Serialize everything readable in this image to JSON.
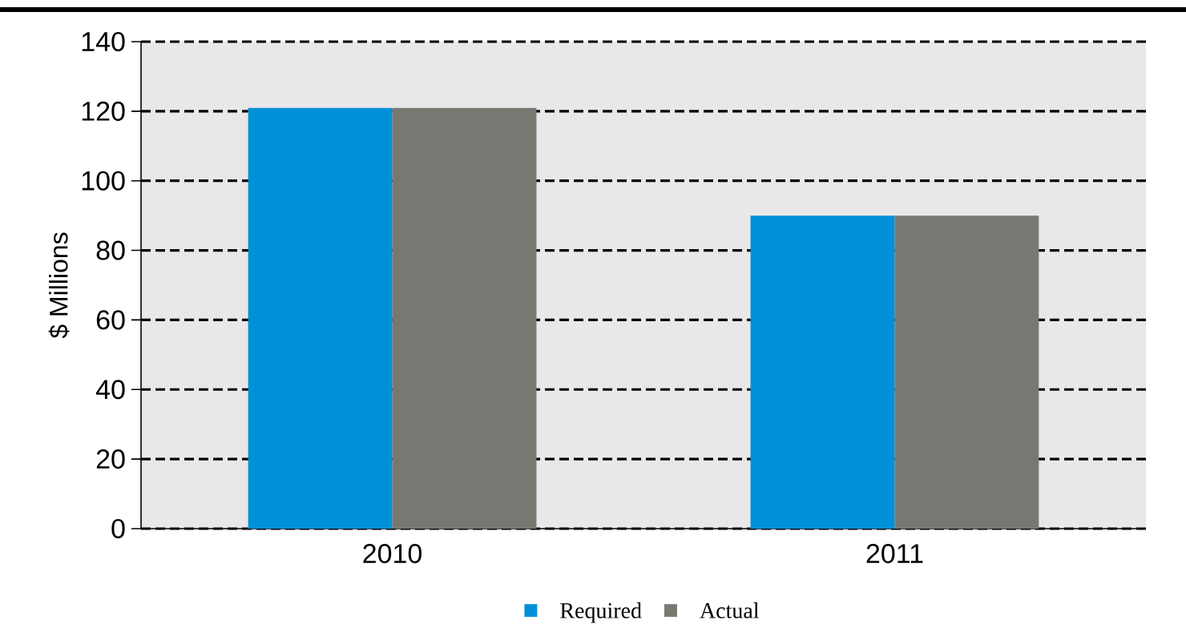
{
  "chart_data": {
    "type": "bar",
    "ylabel": "$ Millions",
    "categories": [
      "2010",
      "2011"
    ],
    "series": [
      {
        "name": "Required",
        "color": "#0090d8",
        "values": [
          121,
          90
        ]
      },
      {
        "name": "Actual",
        "color": "#787873",
        "values": [
          121,
          90
        ]
      }
    ],
    "ylim": [
      0,
      140
    ],
    "yticks": [
      0,
      20,
      40,
      60,
      80,
      100,
      120,
      140
    ],
    "grid": "y",
    "legend": "bottom"
  }
}
